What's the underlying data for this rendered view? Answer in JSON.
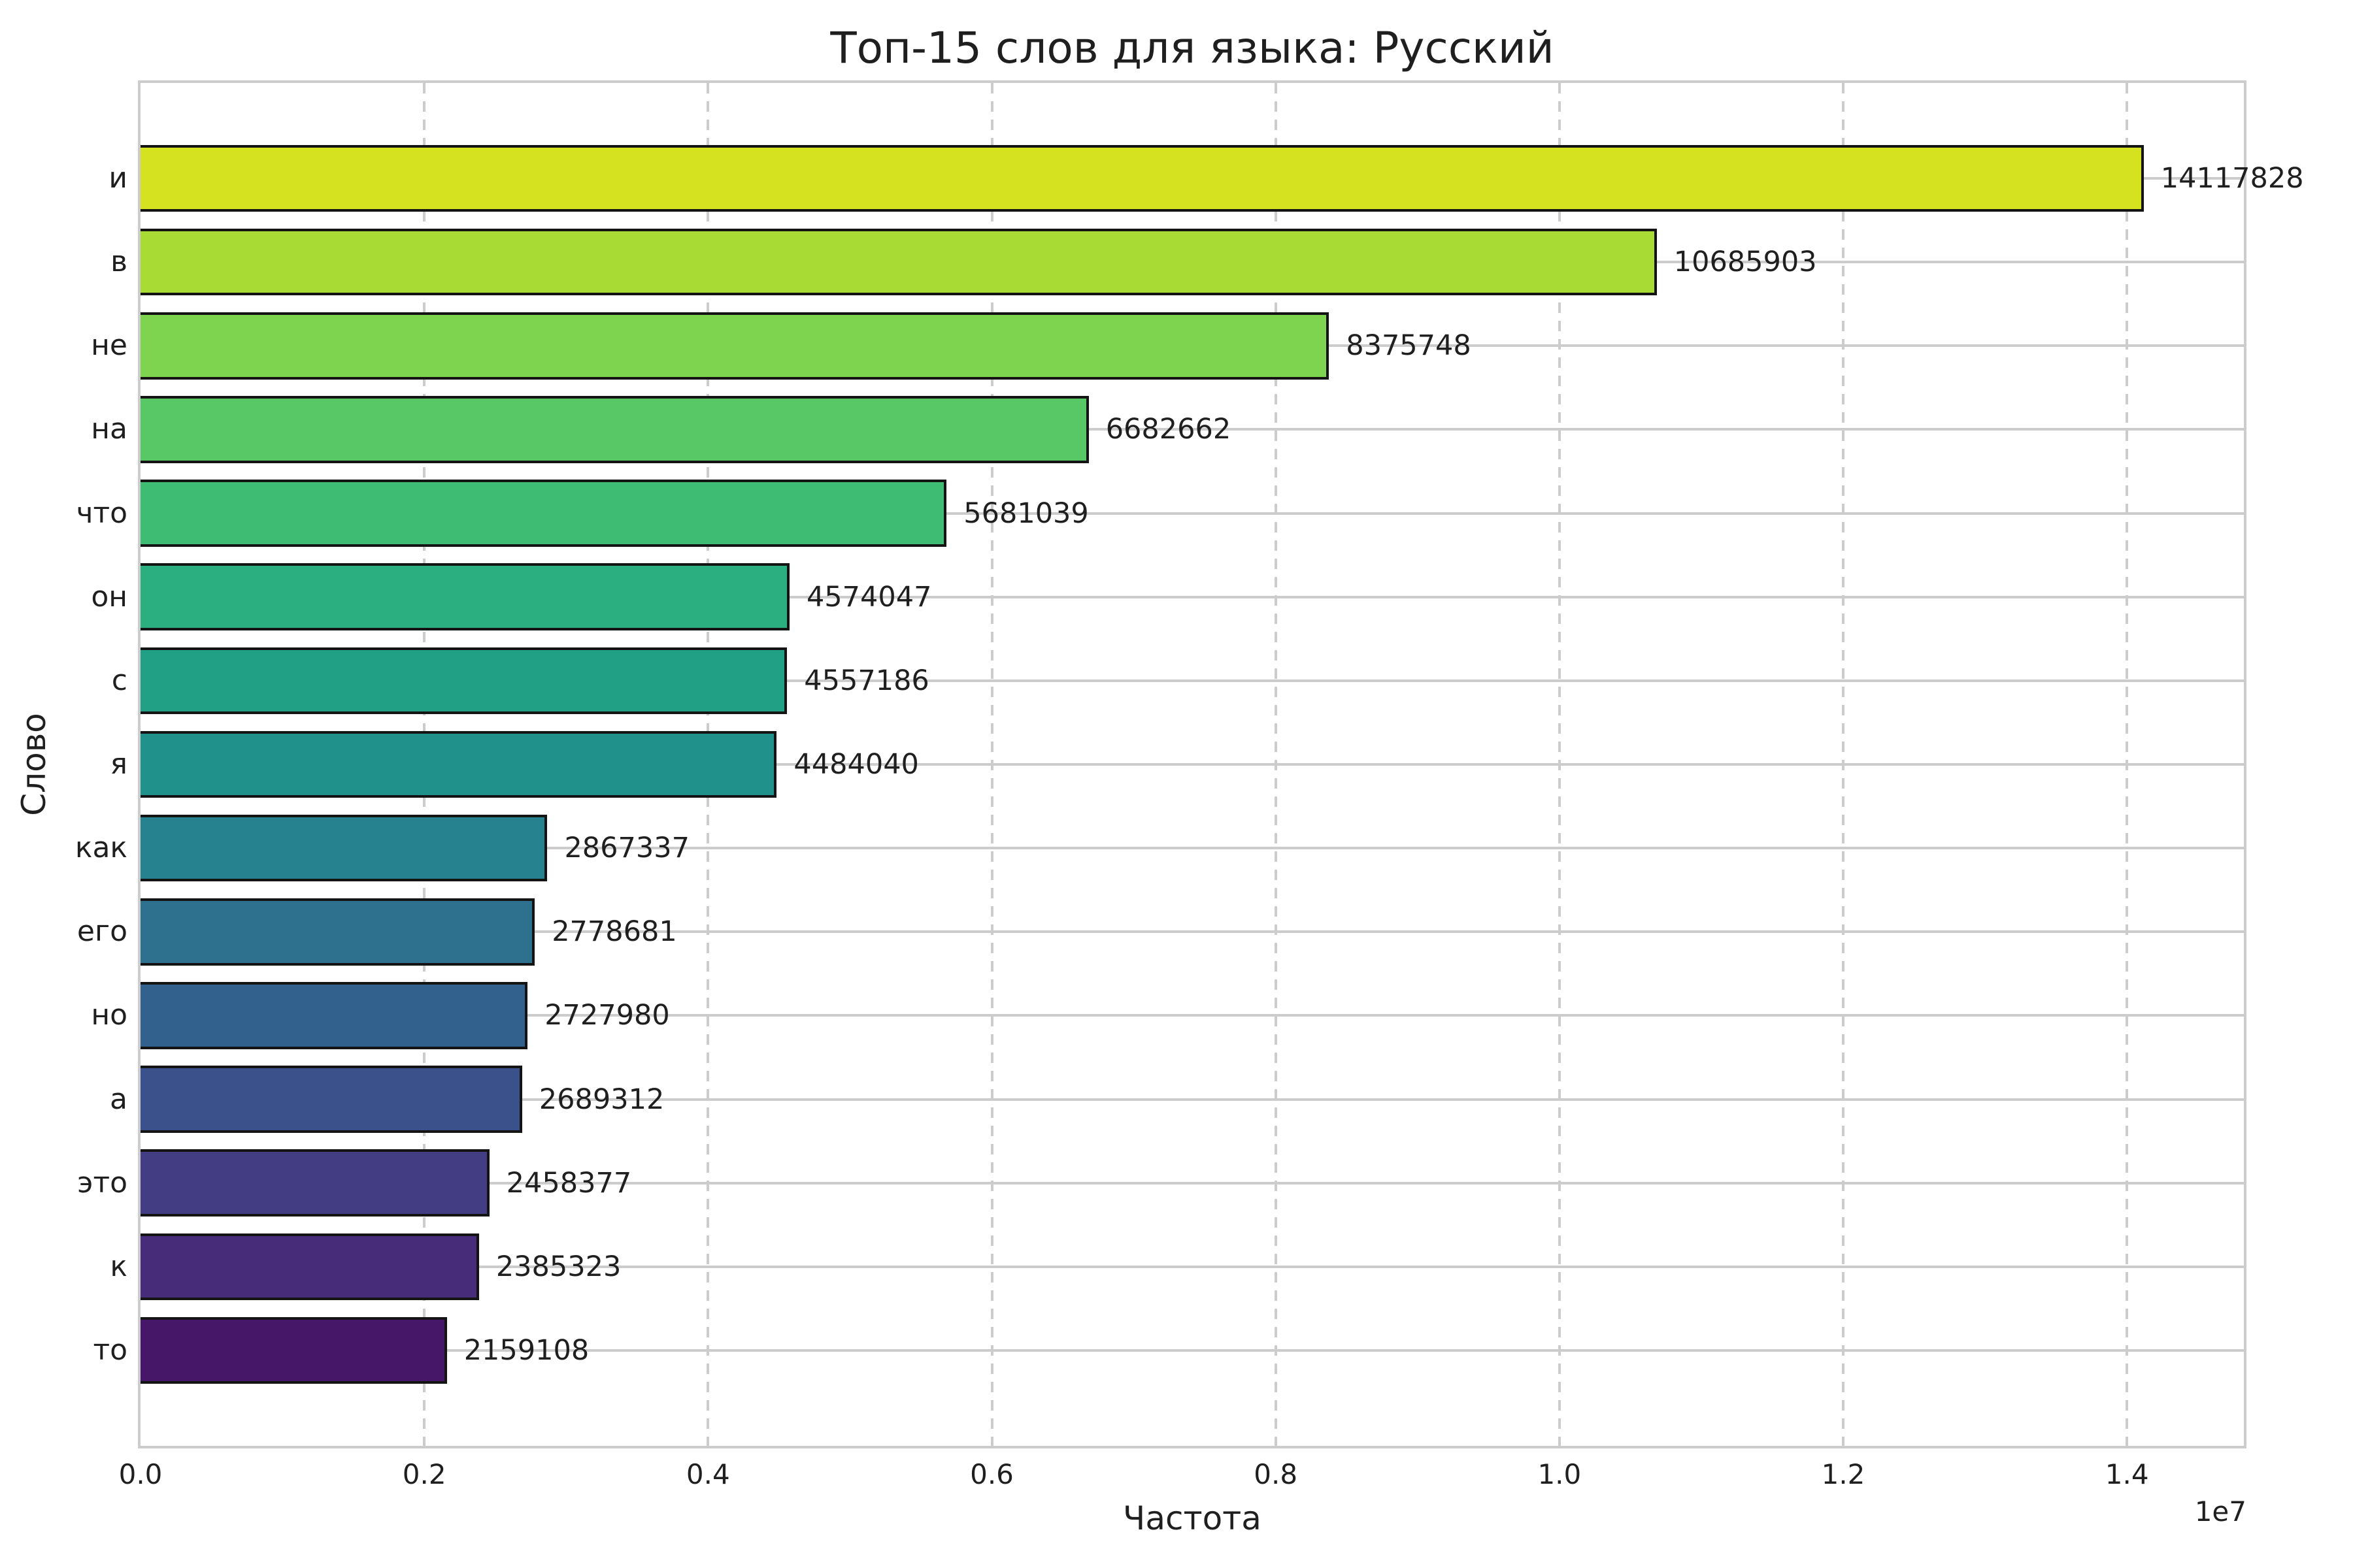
{
  "title": "Топ-15 слов для языка: Русский",
  "chart_data": {
    "type": "bar",
    "orientation": "horizontal",
    "title": "Топ-15 слов для языка: Русский",
    "xlabel": "Частота",
    "ylabel": "Слово",
    "offset_text": "1e7",
    "xlim": [
      0,
      14823719
    ],
    "xticks": [
      {
        "value": 0,
        "label": "0.0"
      },
      {
        "value": 2000000,
        "label": "0.2"
      },
      {
        "value": 4000000,
        "label": "0.4"
      },
      {
        "value": 6000000,
        "label": "0.6"
      },
      {
        "value": 8000000,
        "label": "0.8"
      },
      {
        "value": 10000000,
        "label": "1.0"
      },
      {
        "value": 12000000,
        "label": "1.2"
      },
      {
        "value": 14000000,
        "label": "1.4"
      }
    ],
    "grid": {
      "vertical": "dashed",
      "horizontal": "solid",
      "color": "#cccccc"
    },
    "categories": [
      "и",
      "в",
      "не",
      "на",
      "что",
      "он",
      "с",
      "я",
      "как",
      "его",
      "но",
      "а",
      "это",
      "к",
      "то"
    ],
    "values": [
      14117828,
      10685903,
      8375748,
      6682662,
      5681039,
      4574047,
      4557186,
      4484040,
      2867337,
      2778681,
      2727980,
      2689312,
      2458377,
      2385323,
      2159108
    ],
    "bar_colors": [
      "#d4e21f",
      "#a8db34",
      "#7ed34f",
      "#58c765",
      "#3fbc73",
      "#2bae80",
      "#21a086",
      "#21918c",
      "#26828e",
      "#2d718e",
      "#33618d",
      "#3b518b",
      "#433d84",
      "#462c79",
      "#461768"
    ],
    "bar_edge_color": "#141414",
    "spine_color": "#cccccc",
    "background": "#ffffff"
  }
}
